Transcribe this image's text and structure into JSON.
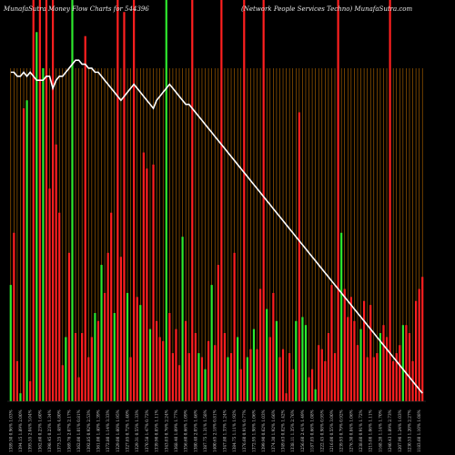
{
  "chart_data": {
    "type": "bar",
    "title_left": "MunafaSutra  Money Flow  Charts for 544396",
    "title_right": "(Network People  Services  Techno) MunafaSutra.com",
    "categories": [
      "1389.50 0.96% 1.03%",
      "1398.10 1.22% 1.76%",
      "1398.60 1.75% 2.65%",
      "1394.15 1.89% 2.00%",
      "1375.30 0.57% 1.95%",
      "1397.20 2.46% 3.60%",
      "1395.55 2.04% 3.04%",
      "1392.35 0.70% 1.47%",
      "1454.50 0.66% 3.04%",
      "1362.60 0.23% 1.60%",
      "1360.55 0.24% 1.09%",
      "1358.80 0.12% 1.25%",
      "1398.45 0.23% 1.34%",
      "1333.65 0.73% 2.38%",
      "1340.80 1.03% 2.35%",
      "1373.25 1.48% 4.80%",
      "1366.85 2.87% 4.51%",
      "1360.10 1.38% 2.36%",
      "1369.76 2.07% 2.17%",
      "1387.85 2.22% 2.40%",
      "1366.25 2.18% 2.49%",
      "1362.00 1.01% 0.81%",
      "1366.20 0.79% 0.66%",
      "1378.50 1.14% 1.13%",
      "1392.85 0.92% 2.53%",
      "1393.00 2.36% 1.06%",
      "1382.65 1.30% 1.14%",
      "1361.00 1.40% 1.39%",
      "1356.80 1.28% 1.37%",
      "1358.60 0.99% 2.47%",
      "1372.80 1.14% 3.33%",
      "1356.95 0.85% 2.04%",
      "1345.10 0.90% 1.61%",
      "1329.00 1.60% 1.95%",
      "1314.30 2.29% 4.42%",
      "1301.48 0.84% 0.77%",
      "1327.85 0.72% 1.40%",
      "1336.40 1.39% 3.89%",
      "1338.60 1.12% 1.84%",
      "1329.31 0.55% 1.33%",
      "1369.23 0.85% 2.07%",
      "1326.38 0.38% 0.83%",
      "1370.58 1.47% 0.72%",
      "1370.00 2.61% 1.77%",
      "1346.05 1.51% 1.18%",
      "1339.90 0.85% 1.11%",
      "1359.10 0.81% 1.18%",
      "1323.05 1.87% 1.00%",
      "1343.03 0.76% 2.24%",
      "1355.59 0.90% 2.25%",
      "1372.29 0.64% 1.57%",
      "1368.40 1.09% 1.77%",
      "1339.25 1.62% 2.99%",
      "1350.28 0.97% 0.80%",
      "1356.60 0.66% 1.09%",
      "1357.00 2.14% 0.42%",
      "1373.20 1.26% 1.11%",
      "1380.40 2.05% 1.46%",
      "1398.35 1.02% 2.77%",
      "1382.43 0.57% 1.15%",
      "1387.75 1.31% 1.58%",
      "1384.25 2.51% 1.94%",
      "1399.00 1.64% 2.52%",
      "1400.65 2.18% 0.81%",
      "1379.45 2.53% 2.33%",
      "1362.70 1.53% 1.41%",
      "1347.80 1.33% 1.24%",
      "1355.00 0.35% 1.87%",
      "1391.30 0.63% 1.72%",
      "1384.75 1.11% 1.92%",
      "1399.55 2.07% 1.91%",
      "1395.60 1.13% 1.03%",
      "1376.60 0.91% 0.77%",
      "1379.40 1.40% 2.24%",
      "1355.95 0.95% 1.58%",
      "1372.95 1.98% 1.06%",
      "1398.90 1.75% 0.88%",
      "1393.55 1.54% 1.26%",
      "1399.90 0.62% 1.03%",
      "1387.44 1.60% 2.46%",
      "1373.35 0.80% 1.00%",
      "1374.30 1.92% 1.66%",
      "1360.50 0.99% 0.89%",
      "1397.10 0.69% 1.59%",
      "1349.63 0.82% 1.42%",
      "1343.80 2.17% 0.84%",
      "1326.40 0.59% 0.97%",
      "1338.11 1.35% 2.76%",
      "1320.54 0.53% 0.90%",
      "1294.25 1.05% 1.05%",
      "1256.60 2.41% 1.49%",
      "1232.30 2.91% 1.92%",
      "1232.24 1.69% 0.61%",
      "1187.85 0.66% 1.08%",
      "1161.30 1.45% 2.22%",
      "1199.90 0.94% 3.76%",
      "1222.45 0.98% 0.95%",
      "1217.35 0.76% 1.09%",
      "1178.40 1.35% 0.48%",
      "1216.00 0.55% 3.00%",
      "1209.75 1.33% 2.11%",
      "1256.70 1.09% 1.61%",
      "1239.93 0.79% 0.92%",
      "1288.57 1.17% 3.56%",
      "1265.45 2.23% 1.87%",
      "1276.30 0.84% 1.06%",
      "1271.48 1.19% 0.64%",
      "1245.12 1.71% 2.50%",
      "1238.60 0.91% 1.72%",
      "1227.21 1.90% 1.04%",
      "1214.85 0.72% 0.38%",
      "1215.08 1.06% 1.11%",
      "1198.93 2.07% 1.92%",
      "1170.86 1.93% 1.16%",
      "1168.20 1.14% 1.70%",
      "1192.20 0.90% 1.06%",
      "1209.79 2.80% 2.27%",
      "1240.43 1.89% 2.73%",
      "1243.20 1.96% 1.29%",
      "1237.03 1.53% 1.45%",
      "1207.90 1.24% 1.03%",
      "1192.60 0.85% 2.46%",
      "1218.40 0.89% 1.51%",
      "1230.53 1.20% 2.27%",
      "1188.10 0.50% 1.13%",
      "1190.93 1.68% 2.13%",
      "1183.60 1.10% 1.08%",
      "1184.51 1.36% 1.54%"
    ],
    "series": [
      {
        "name": "",
        "colors": [
          "green",
          "red",
          "red",
          "green",
          "red",
          "green",
          "red",
          "red",
          "green",
          "red",
          "green",
          "red",
          "red",
          "red",
          "red",
          "red",
          "red",
          "green",
          "red",
          "green",
          "red",
          "red",
          "red",
          "red",
          "red",
          "red",
          "green",
          "red",
          "green",
          "red",
          "red",
          "red",
          "green",
          "red",
          "red",
          "red",
          "green",
          "red",
          "red",
          "red",
          "green",
          "red",
          "red",
          "green",
          "red",
          "red",
          "red",
          "red",
          "green",
          "red",
          "red",
          "red",
          "red",
          "green",
          "red",
          "red",
          "red",
          "red",
          "green",
          "red",
          "green",
          "red",
          "green",
          "red",
          "red",
          "red",
          "red",
          "green",
          "red",
          "red",
          "green",
          "red",
          "red",
          "green",
          "red",
          "green",
          "red",
          "red",
          "red",
          "green",
          "red",
          "red",
          "green",
          "red",
          "red",
          "red",
          "red",
          "red",
          "green",
          "red",
          "green",
          "green",
          "red",
          "red",
          "green",
          "red",
          "red",
          "red",
          "red",
          "red",
          "red",
          "red",
          "green",
          "red",
          "red",
          "red",
          "red",
          "red",
          "green",
          "red",
          "red",
          "red",
          "red",
          "red",
          "green",
          "red",
          "red",
          "red",
          "red",
          "red",
          "red",
          "green",
          "red",
          "red",
          "red",
          "red",
          "red",
          "red",
          "red"
        ],
        "values": [
          29,
          42,
          10,
          2,
          73,
          75,
          5,
          100,
          92,
          100,
          83,
          100,
          53,
          100,
          64,
          47,
          9,
          16,
          37,
          100,
          17,
          6,
          17,
          91,
          11,
          16,
          22,
          20,
          34,
          27,
          37,
          47,
          22,
          100,
          36,
          97,
          27,
          11,
          100,
          26,
          24,
          62,
          58,
          18,
          59,
          20,
          16,
          15,
          100,
          22,
          12,
          18,
          9,
          41,
          20,
          12,
          100,
          17,
          12,
          11,
          8,
          15,
          29,
          14,
          34,
          100,
          17,
          11,
          12,
          37,
          16,
          8,
          100,
          11,
          13,
          18,
          13,
          28,
          100,
          23,
          16,
          27,
          20,
          11,
          13,
          2,
          12,
          8,
          20,
          72,
          21,
          19,
          6,
          8,
          3,
          14,
          13,
          10,
          17,
          29,
          12,
          100,
          42,
          28,
          21,
          26,
          20,
          14,
          18,
          25,
          11,
          24,
          11,
          12,
          17,
          19,
          16,
          100,
          10,
          12,
          14,
          19,
          19,
          17,
          10,
          25,
          28,
          31
        ]
      }
    ],
    "line": {
      "name": "",
      "color": "#ffffff",
      "values": [
        82,
        82,
        81,
        81,
        82,
        81,
        82,
        81,
        80,
        80,
        80,
        81,
        81,
        78,
        80,
        81,
        81,
        82,
        83,
        84,
        85,
        85,
        84,
        84,
        83,
        83,
        82,
        82,
        81,
        80,
        79,
        78,
        77,
        76,
        75,
        76,
        77,
        78,
        79,
        78,
        77,
        76,
        75,
        74,
        73,
        75,
        76,
        77,
        78,
        79,
        78,
        77,
        76,
        75,
        74,
        74,
        73,
        72,
        71,
        70,
        69,
        68,
        67,
        66,
        65,
        64,
        63,
        62,
        61,
        60,
        59,
        58,
        57,
        56,
        55,
        54,
        53,
        52,
        51,
        50,
        49,
        48,
        47,
        46,
        45,
        44,
        43,
        42,
        41,
        40,
        39,
        38,
        37,
        36,
        35,
        34,
        33,
        32,
        31,
        30,
        29,
        28,
        27,
        26,
        25,
        24,
        23,
        22,
        21,
        20,
        19,
        18,
        17,
        16,
        15,
        14,
        13,
        12,
        11,
        10,
        9,
        8,
        7,
        6,
        5,
        4,
        3,
        2
      ]
    },
    "ylim": [
      0,
      100
    ],
    "grid": true,
    "grid_color": "#b86a00",
    "colors": {
      "up": "#2ee82e",
      "down": "#ff1f1f",
      "background": "#000000"
    }
  }
}
